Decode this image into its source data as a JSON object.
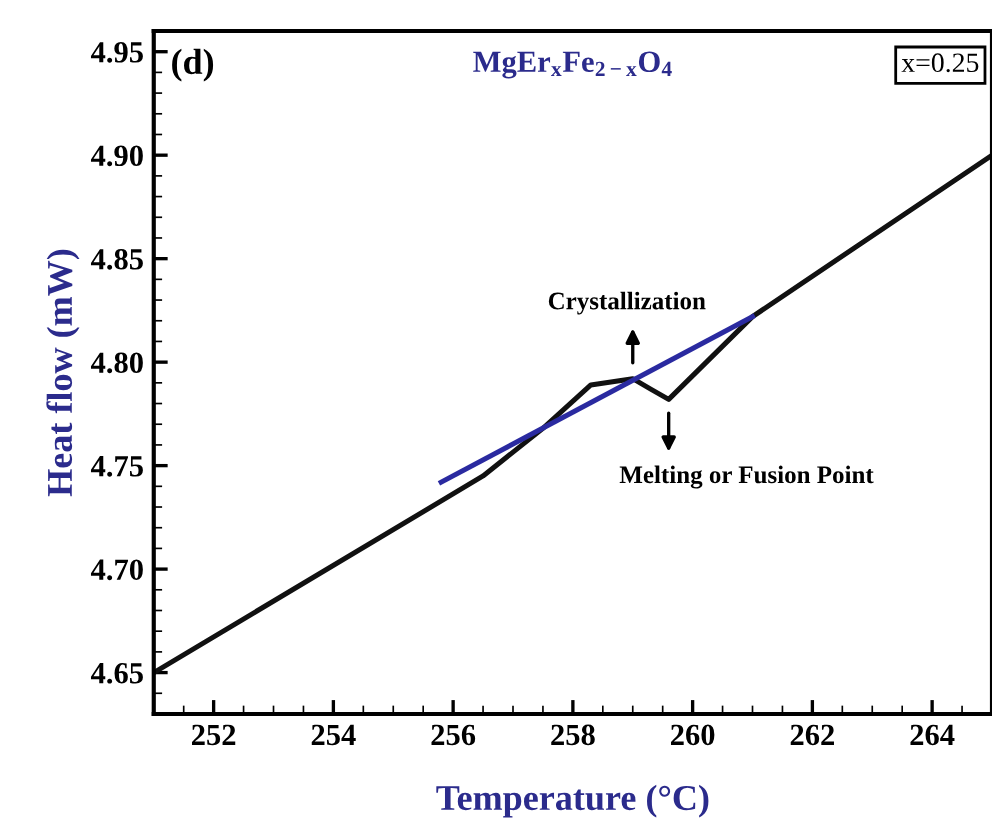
{
  "chart_data": {
    "type": "line",
    "title": "MgEr$_{x}$Fe$_{2−x}$O$_{4}$",
    "xlabel": "Temperature (°C)",
    "ylabel": "Heat flow (mW)",
    "xlim": [
      251,
      265
    ],
    "ylim": [
      4.63,
      4.96
    ],
    "xticks": [
      252,
      254,
      256,
      258,
      260,
      262,
      264
    ],
    "yticks": [
      4.65,
      {
        "value": 4.7,
        "label": "4.70"
      },
      4.75,
      {
        "value": 4.8,
        "label": "4.80"
      },
      4.85,
      {
        "value": 4.9,
        "label": "4.90"
      },
      4.95
    ],
    "series": [
      {
        "color": "#111111",
        "x": [
          251,
          256.5,
          257.5,
          258.3,
          259.0,
          259.3,
          259.6,
          261.0,
          265
        ],
        "values": [
          4.65,
          4.745,
          4.768,
          4.789,
          4.792,
          4.787,
          4.782,
          4.822,
          4.9
        ]
      },
      {
        "color": "#2a2aa0",
        "x": [
          255.8,
          261.0
        ],
        "values": [
          4.742,
          4.822
        ]
      }
    ],
    "annotations": [
      "(d)",
      "x=0.25",
      {
        "text": "Crystallization",
        "x": 259.0,
        "y": 4.795
      },
      {
        "text": "Melting or Fusion Point",
        "x": 259.6,
        "y": 4.78
      }
    ],
    "grid": false,
    "legend": false,
    "marker": "none",
    "line_style": "solid"
  }
}
